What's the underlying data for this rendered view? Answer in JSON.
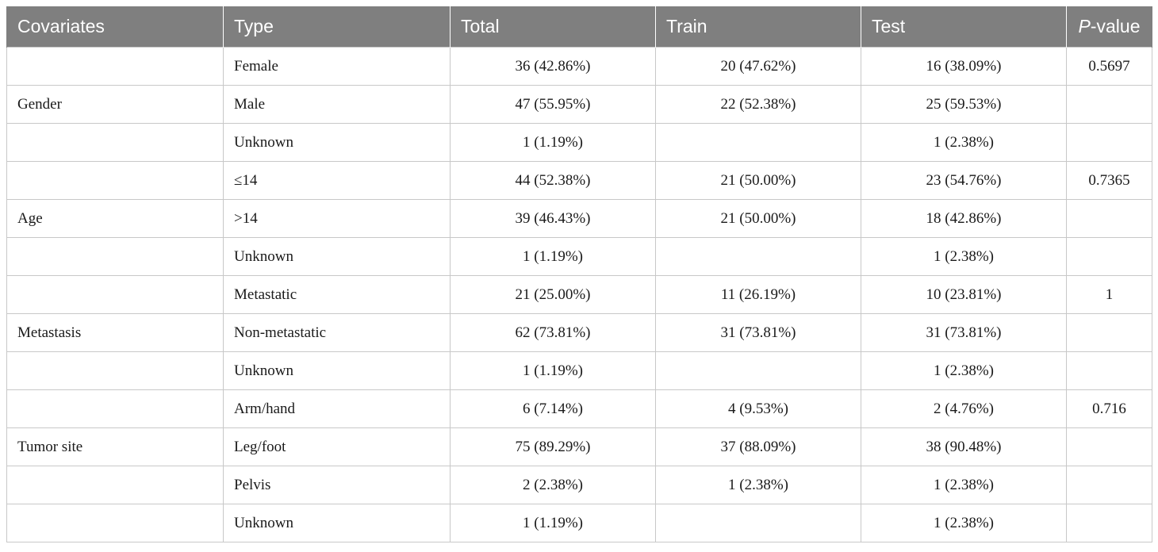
{
  "table": {
    "headers": [
      "Covariates",
      "Type",
      "Total",
      "Train",
      "Test",
      "-value"
    ],
    "p_italic": "P",
    "rows": [
      [
        "",
        "Female",
        "36 (42.86%)",
        "20 (47.62%)",
        "16 (38.09%)",
        "0.5697"
      ],
      [
        "Gender",
        "Male",
        "47 (55.95%)",
        "22 (52.38%)",
        "25 (59.53%)",
        ""
      ],
      [
        "",
        "Unknown",
        "1 (1.19%)",
        "",
        "1 (2.38%)",
        ""
      ],
      [
        "",
        "≤14",
        "44 (52.38%)",
        "21 (50.00%)",
        "23 (54.76%)",
        "0.7365"
      ],
      [
        "Age",
        ">14",
        "39 (46.43%)",
        "21 (50.00%)",
        "18 (42.86%)",
        ""
      ],
      [
        "",
        "Unknown",
        "1 (1.19%)",
        "",
        "1 (2.38%)",
        ""
      ],
      [
        "",
        "Metastatic",
        "21 (25.00%)",
        "11 (26.19%)",
        "10 (23.81%)",
        "1"
      ],
      [
        "Metastasis",
        "Non-metastatic",
        "62 (73.81%)",
        "31 (73.81%)",
        "31 (73.81%)",
        ""
      ],
      [
        "",
        "Unknown",
        "1 (1.19%)",
        "",
        "1 (2.38%)",
        ""
      ],
      [
        "",
        "Arm/hand",
        "6 (7.14%)",
        "4 (9.53%)",
        "2 (4.76%)",
        "0.716"
      ],
      [
        "Tumor site",
        "Leg/foot",
        "75 (89.29%)",
        "37 (88.09%)",
        "38 (90.48%)",
        ""
      ],
      [
        "",
        "Pelvis",
        "2 (2.38%)",
        "1 (2.38%)",
        "1 (2.38%)",
        ""
      ],
      [
        "",
        "Unknown",
        "1 (1.19%)",
        "",
        "1 (2.38%)",
        ""
      ]
    ]
  },
  "colors": {
    "header_bg": "#7f7f7f",
    "header_text": "#ffffff",
    "grid_line": "#c8c8c8"
  }
}
